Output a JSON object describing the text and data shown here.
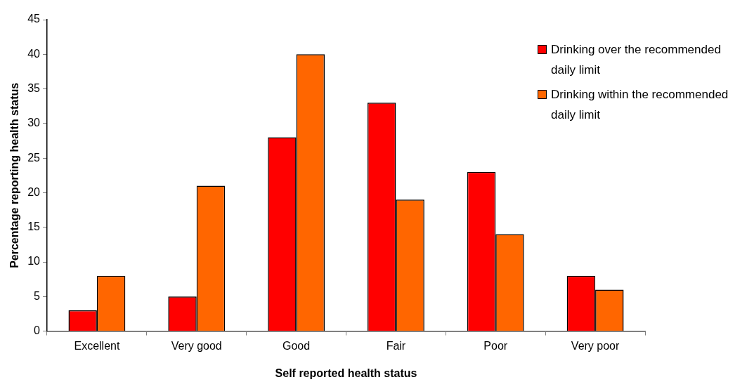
{
  "chart_data": {
    "type": "bar",
    "xlabel": "Self reported health status",
    "ylabel": "Percentage reporting health status",
    "categories": [
      "Excellent",
      "Very good",
      "Good",
      "Fair",
      "Poor",
      "Very poor"
    ],
    "series": [
      {
        "name": "Drinking over the recommended daily limit",
        "color": "#ff0000",
        "values": [
          3,
          5,
          28,
          33,
          23,
          8
        ]
      },
      {
        "name": "Drinking within the recommended daily limit",
        "color": "#ff6600",
        "values": [
          8,
          21,
          40,
          19,
          14,
          6
        ]
      }
    ],
    "ylim": [
      0,
      45
    ],
    "yticks": [
      0,
      5,
      10,
      15,
      20,
      25,
      30,
      35,
      40,
      45
    ],
    "legend": "right"
  }
}
